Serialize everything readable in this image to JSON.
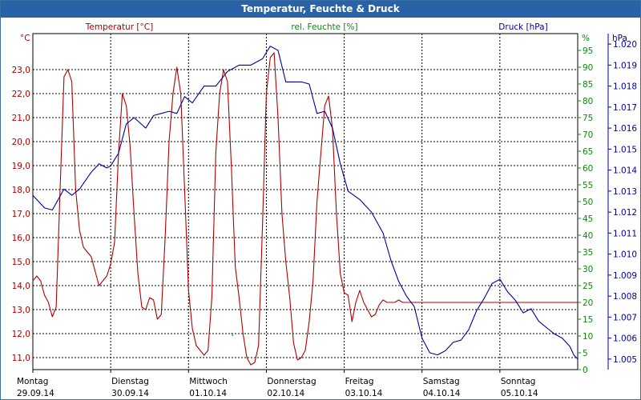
{
  "window": {
    "title": "Temperatur, Feuchte & Druck"
  },
  "colors": {
    "temperature": "#b00000",
    "humidity": "#0a8a0a",
    "pressure": "#0000a0",
    "titlebar": "#2a62a8"
  },
  "chart_data": {
    "type": "line",
    "title": "Temperatur, Feuchte & Druck",
    "x_range": [
      0,
      7
    ],
    "days": [
      {
        "name": "Montag",
        "date": "29.09.14"
      },
      {
        "name": "Dienstag",
        "date": "30.09.14"
      },
      {
        "name": "Mittwoch",
        "date": "01.10.14"
      },
      {
        "name": "Donnerstag",
        "date": "02.10.14"
      },
      {
        "name": "Freitag",
        "date": "03.10.14"
      },
      {
        "name": "Samstag",
        "date": "04.10.14"
      },
      {
        "name": "Sonntag",
        "date": "05.10.14"
      }
    ],
    "axes": {
      "left": {
        "unit": "°C",
        "legend": "Temperatur [°C]",
        "range": [
          10.5,
          24.5
        ],
        "ticks": [
          "11,0",
          "12,0",
          "13,0",
          "14,0",
          "15,0",
          "16,0",
          "17,0",
          "18,0",
          "19,0",
          "20,0",
          "21,0",
          "22,0",
          "23,0"
        ]
      },
      "mid": {
        "unit": "%",
        "legend": "rel. Feuchte [%]",
        "range": [
          0,
          100
        ],
        "ticks": [
          "0",
          "5",
          "10",
          "15",
          "20",
          "25",
          "30",
          "35",
          "40",
          "45",
          "50",
          "55",
          "60",
          "65",
          "70",
          "75",
          "80",
          "85",
          "90",
          "95"
        ]
      },
      "right": {
        "unit": "hPa",
        "legend": "Druck [hPa]",
        "range": [
          1.0045,
          1.0205
        ],
        "ticks": [
          "1.005",
          "1.006",
          "1.007",
          "1.008",
          "1.009",
          "1.010",
          "1.011",
          "1.012",
          "1.013",
          "1.014",
          "1.015",
          "1.016",
          "1.017",
          "1.018",
          "1.019",
          "1.020"
        ]
      }
    },
    "series": [
      {
        "name": "Temperatur",
        "axis": "left",
        "x": [
          0,
          0.05,
          0.1,
          0.15,
          0.2,
          0.25,
          0.3,
          0.35,
          0.4,
          0.45,
          0.5,
          0.55,
          0.6,
          0.65,
          0.7,
          0.75,
          0.8,
          0.85,
          0.9,
          0.95,
          1.0,
          1.05,
          1.1,
          1.15,
          1.2,
          1.25,
          1.3,
          1.35,
          1.4,
          1.45,
          1.5,
          1.55,
          1.6,
          1.65,
          1.7,
          1.75,
          1.8,
          1.85,
          1.9,
          1.95,
          2.0,
          2.05,
          2.1,
          2.15,
          2.2,
          2.25,
          2.3,
          2.35,
          2.4,
          2.45,
          2.5,
          2.55,
          2.6,
          2.65,
          2.7,
          2.75,
          2.8,
          2.85,
          2.9,
          2.95,
          3.0,
          3.05,
          3.1,
          3.15,
          3.2,
          3.25,
          3.3,
          3.35,
          3.4,
          3.45,
          3.5,
          3.55,
          3.6,
          3.65,
          3.7,
          3.75,
          3.8,
          3.85,
          3.9,
          3.95,
          4.0,
          4.05,
          4.1,
          4.15,
          4.2,
          4.25,
          4.3,
          4.35,
          4.4,
          4.45,
          4.5,
          4.55,
          4.6,
          4.65,
          4.7,
          4.75,
          4.8,
          4.85,
          4.9,
          4.95,
          5.0,
          5.05,
          5.1,
          5.15,
          5.2,
          5.25,
          5.3,
          5.35,
          5.4,
          5.45,
          5.5,
          5.55,
          5.6,
          5.65,
          5.7,
          5.75,
          5.8,
          5.85,
          5.9,
          5.95,
          6.0,
          6.05,
          6.1,
          6.15,
          6.2,
          6.25,
          6.3,
          6.35,
          6.4,
          6.45,
          6.5,
          6.55,
          6.6,
          6.65,
          6.7,
          6.75,
          6.8,
          6.85,
          6.9,
          6.95,
          7.0
        ],
        "values": [
          14.2,
          14.4,
          14.2,
          13.6,
          13.3,
          12.7,
          13.1,
          18.0,
          22.7,
          23.0,
          22.5,
          18.0,
          16.3,
          15.6,
          15.4,
          15.2,
          14.6,
          14.0,
          14.2,
          14.4,
          14.9,
          15.8,
          19.5,
          22.0,
          21.5,
          19.8,
          17.0,
          14.5,
          13.1,
          13.0,
          13.5,
          13.4,
          12.6,
          12.8,
          16.0,
          20.0,
          22.0,
          23.1,
          22.0,
          18.0,
          13.8,
          12.2,
          11.5,
          11.3,
          11.1,
          11.3,
          13.5,
          19.5,
          22.0,
          23.0,
          22.5,
          19.0,
          14.8,
          13.5,
          12.0,
          11.0,
          10.7,
          10.8,
          11.5,
          16.5,
          22.0,
          23.5,
          23.7,
          21.0,
          17.0,
          15.0,
          13.5,
          11.6,
          10.9,
          11.0,
          11.3,
          12.5,
          14.2,
          17.5,
          19.5,
          21.5,
          21.9,
          20.5,
          17.0,
          14.5,
          13.7,
          13.6,
          12.5,
          13.3,
          13.8,
          13.3,
          13.0,
          12.7,
          12.8,
          13.2,
          13.4,
          13.3,
          13.3,
          13.3,
          13.4,
          13.3,
          13.3,
          13.3,
          13.3,
          13.3,
          13.3,
          13.3,
          13.3,
          13.3,
          13.3,
          13.3,
          13.3,
          13.3,
          13.3,
          13.3,
          13.3,
          13.3,
          13.3,
          13.3,
          13.3,
          13.3,
          13.3,
          13.3,
          13.3,
          13.3,
          13.3,
          13.3,
          13.3,
          13.3,
          13.3,
          13.3,
          13.3,
          13.3,
          13.3,
          13.3,
          13.3,
          13.3,
          13.3,
          13.3,
          13.3,
          13.3,
          13.3,
          13.3,
          13.3,
          13.3,
          13.3
        ]
      },
      {
        "name": "Druck",
        "axis": "right",
        "x": [
          0,
          0.15,
          0.25,
          0.4,
          0.5,
          0.6,
          0.75,
          0.85,
          0.95,
          1.0,
          1.1,
          1.2,
          1.3,
          1.45,
          1.55,
          1.65,
          1.75,
          1.85,
          1.95,
          2.05,
          2.2,
          2.35,
          2.5,
          2.65,
          2.8,
          2.95,
          3.05,
          3.15,
          3.25,
          3.35,
          3.45,
          3.55,
          3.65,
          3.75,
          3.85,
          3.95,
          4.05,
          4.2,
          4.35,
          4.5,
          4.6,
          4.7,
          4.8,
          4.9,
          5.0,
          5.1,
          5.2,
          5.3,
          5.4,
          5.5,
          5.6,
          5.7,
          5.8,
          5.9,
          6.0,
          6.1,
          6.2,
          6.3,
          6.4,
          6.5,
          6.6,
          6.7,
          6.8,
          6.9,
          6.95,
          7.0
        ],
        "values": [
          1.0128,
          1.0122,
          1.0121,
          1.0131,
          1.0128,
          1.0131,
          1.0139,
          1.0143,
          1.0141,
          1.0142,
          1.0148,
          1.0162,
          1.0165,
          1.016,
          1.0166,
          1.0167,
          1.0168,
          1.0167,
          1.0175,
          1.0172,
          1.018,
          1.018,
          1.0187,
          1.019,
          1.019,
          1.0193,
          1.0199,
          1.0197,
          1.0182,
          1.0182,
          1.0182,
          1.0181,
          1.0167,
          1.0168,
          1.016,
          1.0143,
          1.013,
          1.0126,
          1.012,
          1.011,
          1.0097,
          1.0087,
          1.008,
          1.0075,
          1.006,
          1.0053,
          1.0052,
          1.0054,
          1.0058,
          1.0059,
          1.0064,
          1.0073,
          1.0079,
          1.0086,
          1.0088,
          1.0082,
          1.0078,
          1.0072,
          1.0074,
          1.0068,
          1.0065,
          1.0062,
          1.006,
          1.0056,
          1.0052,
          1.005
        ]
      }
    ],
    "annotation_humidity": {
      "x": 2.55,
      "values": [
        10,
        11
      ]
    }
  }
}
